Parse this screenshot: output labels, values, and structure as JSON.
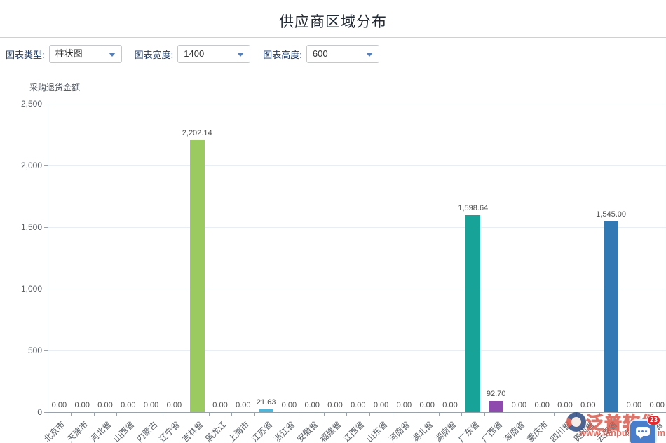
{
  "header": {
    "title": "供应商区域分布"
  },
  "controls": [
    {
      "label": "图表类型:",
      "value": "柱状图"
    },
    {
      "label": "图表宽度:",
      "value": "1400"
    },
    {
      "label": "图表高度:",
      "value": "600"
    }
  ],
  "chart_data": {
    "type": "bar",
    "title": "供应商区域分布",
    "ylabel": "采购退货金额",
    "xlabel": "",
    "ylim": [
      0,
      2500
    ],
    "grid": true,
    "legend_position": "none",
    "categories": [
      "北京市",
      "天津市",
      "河北省",
      "山西省",
      "内蒙古",
      "辽宁省",
      "吉林省",
      "黑龙江",
      "上海市",
      "江苏省",
      "浙江省",
      "安徽省",
      "福建省",
      "江西省",
      "山东省",
      "河南省",
      "湖北省",
      "湖南省",
      "广东省",
      "广西省",
      "海南省",
      "重庆市",
      "四川省",
      "贵州省",
      "云南省",
      "西藏",
      "陕西省"
    ],
    "values": [
      0,
      0,
      0,
      0,
      0,
      0,
      2202.14,
      0,
      0,
      21.63,
      0,
      0,
      0,
      0,
      0,
      0,
      0,
      0,
      1598.64,
      92.7,
      0,
      0,
      0,
      0,
      1545.0,
      0,
      0
    ],
    "value_labels": [
      "0.00",
      "0.00",
      "0.00",
      "0.00",
      "0.00",
      "0.00",
      "2,202.14",
      "0.00",
      "0.00",
      "21.63",
      "0.00",
      "0.00",
      "0.00",
      "0.00",
      "0.00",
      "0.00",
      "0.00",
      "0.00",
      "1,598.64",
      "92.70",
      "0.00",
      "0.00",
      "0.00",
      "0.00",
      "1,545.00",
      "0.00",
      "0.00"
    ],
    "yticks": [
      {
        "v": 0,
        "label": "0"
      },
      {
        "v": 500,
        "label": "500"
      },
      {
        "v": 1000,
        "label": "1,000"
      },
      {
        "v": 1500,
        "label": "1,500"
      },
      {
        "v": 2000,
        "label": "2,000"
      },
      {
        "v": 2500,
        "label": "2,500"
      }
    ],
    "bar_colors": {
      "6": "#9aca60",
      "9": "#4db6d8",
      "18": "#17a398",
      "19": "#8e4bad",
      "24": "#3079b5"
    }
  },
  "watermark": {
    "brand": "泛普软件",
    "url": "www.fanpusoft.com"
  },
  "chat": {
    "badge": "23"
  }
}
